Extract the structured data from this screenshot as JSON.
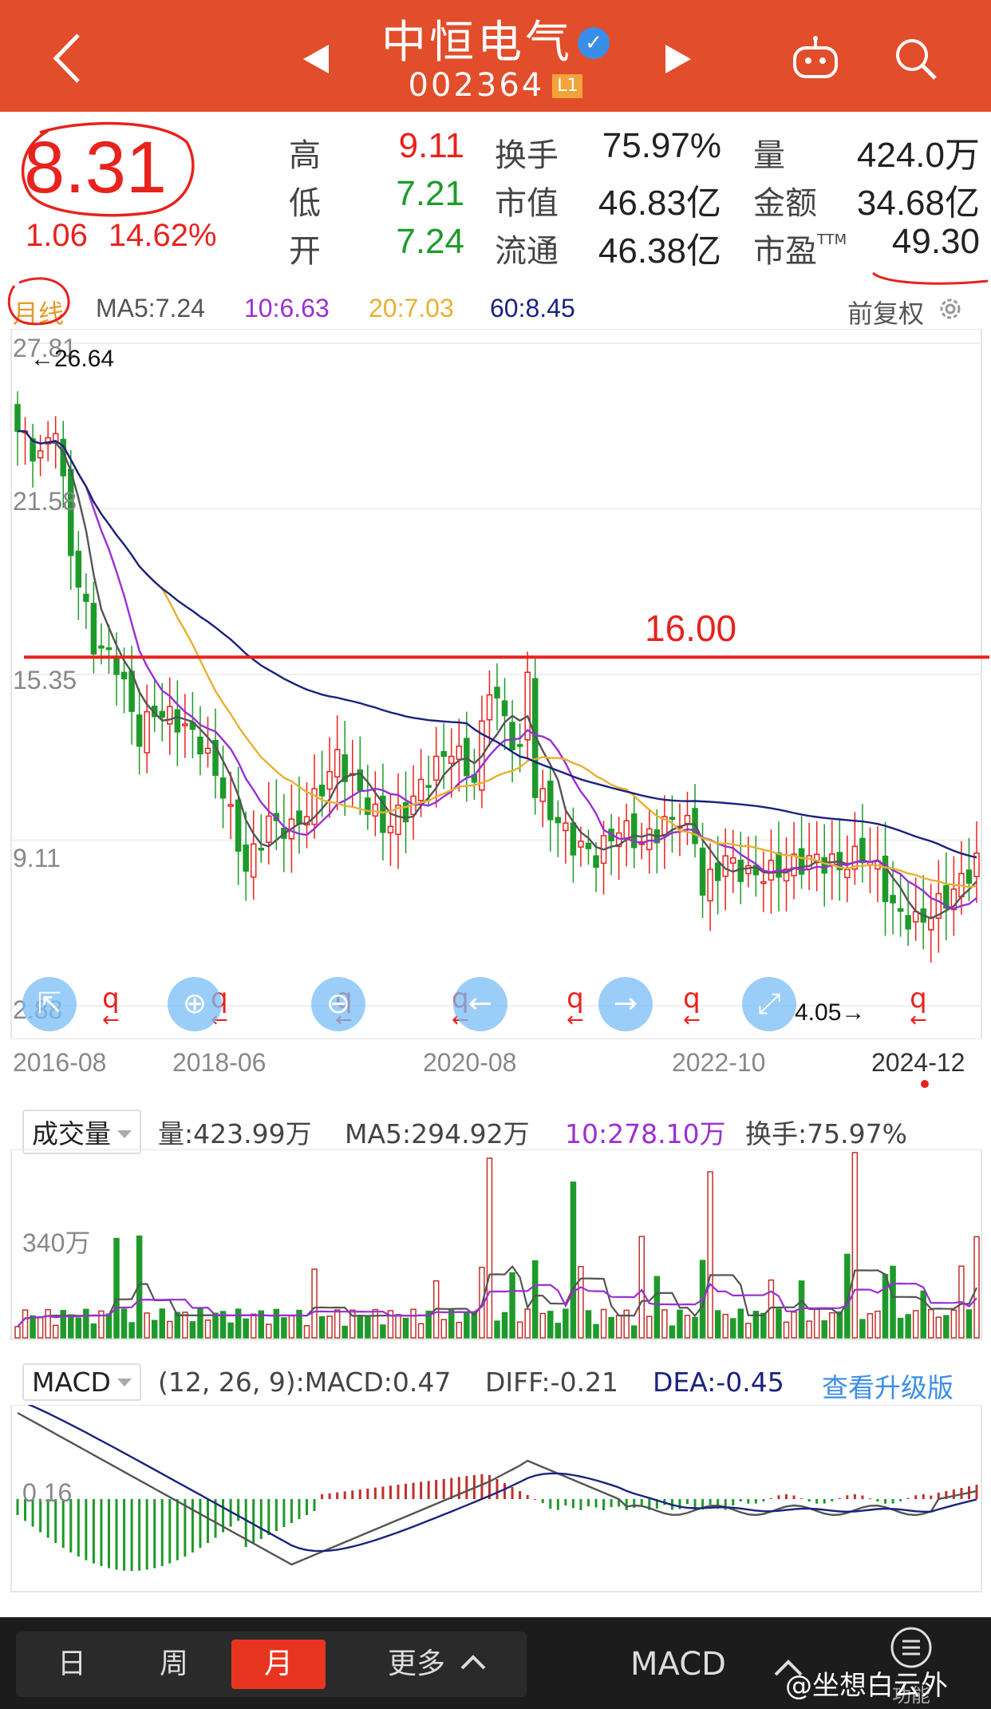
{
  "header": {
    "back_icon": "chevron-left-icon",
    "stock_name": "中恒电气",
    "verified_icon": "verified-check-icon",
    "verified_glyph": "✓",
    "stock_code": "002364",
    "level_badge": "L1",
    "prev_icon": "triangle-left-icon",
    "next_icon": "triangle-right-icon",
    "robot_icon": "robot-icon",
    "search_icon": "search-icon",
    "bar_color": "#e24d2b"
  },
  "quote": {
    "price": "8.31",
    "change": "1.06",
    "change_pct": "14.62%",
    "high_label": "高",
    "high": "9.11",
    "low_label": "低",
    "low": "7.21",
    "open_label": "开",
    "open": "7.24",
    "turnover_label": "换手",
    "turnover": "75.97%",
    "mktcap_label": "市值",
    "mktcap": "46.83亿",
    "float_label": "流通",
    "float_cap": "46.38亿",
    "volume_label": "量",
    "volume": "424.0万",
    "amount_label": "金额",
    "amount": "34.68亿",
    "pe_label": "市盈",
    "pe_sup": "TTM",
    "pe": "49.30",
    "up_color": "#e8221d",
    "down_color": "#1e9a2a"
  },
  "ma_row": {
    "period": "月线",
    "ma5": "MA5:7.24",
    "ma10": "10:6.63",
    "ma20": "20:7.03",
    "ma60": "60:8.45",
    "adjust": "前复权",
    "settings_icon": "gear-icon",
    "colors": {
      "ma5": "#555555",
      "ma10": "#9b2fd4",
      "ma20": "#e9b030",
      "ma60": "#1a237e"
    }
  },
  "kline": {
    "y_labels": [
      "27.81",
      "21.58",
      "15.35",
      "9.11",
      "2.88"
    ],
    "x_labels": [
      "2016-08",
      "2018-06",
      "2020-08",
      "2022-10",
      "2024-12"
    ],
    "high_annotation": "←26.64",
    "low_annotation": "4.05→",
    "resistance_label": "16.00",
    "resistance_value": 16.0,
    "marker_glyph": "q",
    "marker_arrow": "←",
    "overlay_buttons": [
      "collapse-icon",
      "zoom-in-icon",
      "zoom-out-icon",
      "arrow-left-icon",
      "arrow-right-icon",
      "fullscreen-icon"
    ]
  },
  "volume": {
    "indicator": "成交量",
    "vol": "量:423.99万",
    "ma5": "MA5:294.92万",
    "ma10": "10:278.10万",
    "turnover": "换手:75.97%",
    "y_label": "340万"
  },
  "macd": {
    "indicator": "MACD",
    "params": "(12, 26, 9):MACD:0.47",
    "diff": "DIFF:-0.21",
    "dea": "DEA:-0.45",
    "upgrade": "查看升级版",
    "y_label": "0.16"
  },
  "bottom_nav": {
    "day": "日",
    "week": "周",
    "month": "月",
    "more": "更多",
    "more_icon": "chevron-up-icon",
    "indicator": "MACD",
    "indicator_icon": "chevron-up-icon",
    "menu_icon": "menu-icon",
    "menu_caption": "功能",
    "watermark": "@坐想白云外"
  }
}
